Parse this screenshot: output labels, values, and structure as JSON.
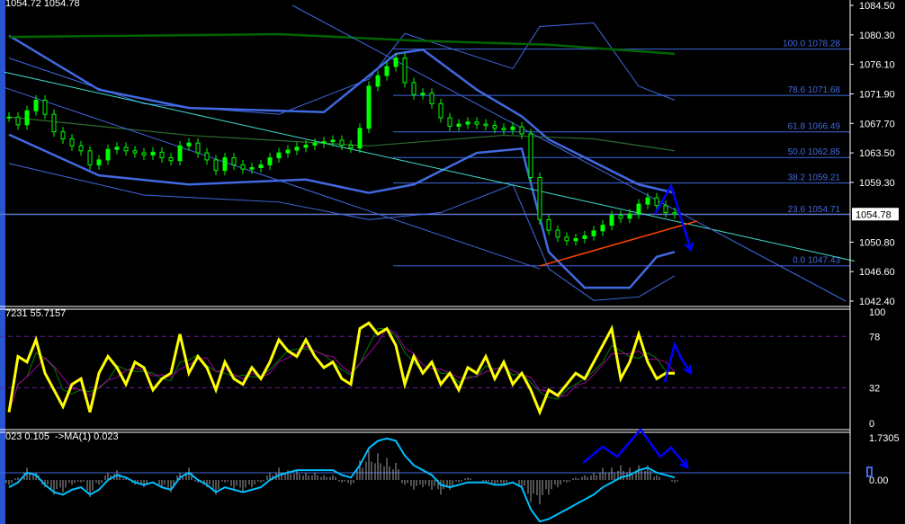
{
  "header": {
    "main_values": "1054.72 1054.78",
    "stoch_values": "7231 55.7157",
    "macd_values": "023 0.105  ->MA(1) 0.023"
  },
  "colors": {
    "bull_candle": "#00ff00",
    "band": "#4169e1",
    "long_ma": "#006400",
    "stoch_main": "#ffff00",
    "stoch_signal_1": "#008000",
    "stoch_signal_2": "#a000a0",
    "macd_line": "#00bfff",
    "histogram": "#a0a0a0",
    "fib": "#4169e1",
    "arrows": "#0000ff",
    "support_line": "#ff4500",
    "trend_line": "#40e0d0"
  },
  "chart_data": [
    {
      "type": "candlestick",
      "ylim": [
        1042.4,
        1084.5
      ],
      "y_ticks": [
        "1084.50",
        "1080.30",
        "1076.10",
        "1071.90",
        "1067.70",
        "1063.50",
        "1059.30",
        "1054.78",
        "1050.80",
        "1046.60",
        "1042.40"
      ],
      "current_price": "1054.78",
      "closes": [
        1068.6,
        1067.5,
        1069.5,
        1071,
        1069,
        1066.5,
        1065.5,
        1064.5,
        1063.8,
        1061.8,
        1062.5,
        1064,
        1064.3,
        1063.8,
        1063.5,
        1063.2,
        1063.6,
        1062.8,
        1062.4,
        1064.5,
        1064.9,
        1063.5,
        1062.5,
        1061,
        1062.8,
        1061.8,
        1061.2,
        1061.4,
        1061.8,
        1062.8,
        1063.5,
        1063.9,
        1064.3,
        1064.6,
        1064.9,
        1065.1,
        1065.3,
        1064.6,
        1064.2,
        1067,
        1073,
        1074.5,
        1075.8,
        1077,
        1073.5,
        1071.8,
        1072,
        1070.5,
        1068.5,
        1067.3,
        1067.6,
        1067.9,
        1067.6,
        1067.4,
        1067,
        1066.8,
        1067.2,
        1066.2,
        1060,
        1054,
        1052.5,
        1051.5,
        1051,
        1051.3,
        1051.7,
        1052.4,
        1053.2,
        1054.6,
        1054.2,
        1054.8,
        1056.2,
        1057.1,
        1056,
        1055,
        1054.8
      ],
      "fibonacci": [
        {
          "level": "100.0",
          "price": "1078.28"
        },
        {
          "level": "78.6",
          "price": "1071.68"
        },
        {
          "level": "61.8",
          "price": "1066.49"
        },
        {
          "level": "50.0",
          "price": "1062.85"
        },
        {
          "level": "38.2",
          "price": "1059.21"
        },
        {
          "level": "23.6",
          "price": "1054.71"
        },
        {
          "level": "0.0",
          "price": "1047.43"
        }
      ],
      "bands": [
        {
          "style": "upper",
          "points": [
            [
              0,
              1080.2
            ],
            [
              10,
              1072.5
            ],
            [
              20,
              1069.9
            ],
            [
              35,
              1069.3
            ],
            [
              43,
              1077.6
            ],
            [
              46,
              1078.2
            ],
            [
              52,
              1072.5
            ],
            [
              57,
              1068.7
            ],
            [
              60,
              1065.4
            ],
            [
              65,
              1062.2
            ],
            [
              70,
              1059.0
            ],
            [
              74,
              1057.8
            ]
          ]
        },
        {
          "style": "lower",
          "points": [
            [
              0,
              1066.1
            ],
            [
              10,
              1060.3
            ],
            [
              20,
              1059.0
            ],
            [
              33,
              1059.7
            ],
            [
              40,
              1057.8
            ],
            [
              45,
              1059.0
            ],
            [
              52,
              1063.5
            ],
            [
              57,
              1064.1
            ],
            [
              60,
              1049.4
            ],
            [
              64,
              1044.3
            ],
            [
              69,
              1044.3
            ],
            [
              72,
              1048.7
            ],
            [
              74,
              1049.4
            ]
          ]
        },
        {
          "style": "outer",
          "points": [
            [
              0,
              1077
            ],
            [
              15,
              1070.5
            ],
            [
              30,
              1069
            ],
            [
              40,
              1074
            ],
            [
              44,
              1080.5
            ],
            [
              56,
              1075.5
            ],
            [
              59,
              1081.5
            ],
            [
              65,
              1082
            ],
            [
              70,
              1073
            ],
            [
              74,
              1071
            ]
          ]
        },
        {
          "style": "outer",
          "points": [
            [
              0,
              1062
            ],
            [
              15,
              1057.5
            ],
            [
              30,
              1056.5
            ],
            [
              40,
              1054
            ],
            [
              48,
              1055
            ],
            [
              56,
              1059
            ],
            [
              60,
              1047
            ],
            [
              65,
              1042.5
            ],
            [
              70,
              1043
            ],
            [
              74,
              1046
            ]
          ]
        },
        {
          "style": "long_ma",
          "points": [
            [
              0,
              1080.0
            ],
            [
              30,
              1080.4
            ],
            [
              45,
              1079.5
            ],
            [
              60,
              1078.9
            ],
            [
              74,
              1077.6
            ]
          ]
        },
        {
          "style": "mid_ma",
          "points": [
            [
              0,
              1068.6
            ],
            [
              20,
              1066
            ],
            [
              40,
              1064.5
            ],
            [
              55,
              1066
            ],
            [
              65,
              1065.5
            ],
            [
              74,
              1063.8
            ]
          ]
        }
      ],
      "trendlines": [
        {
          "style": "trend",
          "from": [
            -0.5,
            1075.0
          ],
          "to": [
            94,
            1048.1
          ]
        },
        {
          "style": "channel",
          "from": [
            31.5,
            1084.5
          ],
          "to": [
            93,
            1042.4
          ]
        },
        {
          "style": "channel",
          "from": [
            -0.5,
            1072.8
          ],
          "to": [
            59,
            1047.0
          ]
        },
        {
          "style": "support",
          "from": [
            59,
            1047.4
          ],
          "to": [
            76.5,
            1053.8
          ]
        }
      ]
    },
    {
      "type": "line",
      "ylim": [
        0,
        100
      ],
      "y_ticks": [
        "100",
        "78",
        "32",
        "0"
      ],
      "levels": [
        78,
        32
      ],
      "values": [
        10,
        60,
        55,
        75,
        45,
        30,
        15,
        35,
        40,
        10,
        45,
        60,
        50,
        35,
        55,
        50,
        30,
        40,
        45,
        80,
        45,
        60,
        50,
        30,
        55,
        40,
        35,
        50,
        40,
        55,
        75,
        65,
        60,
        75,
        60,
        50,
        55,
        40,
        35,
        85,
        90,
        80,
        85,
        70,
        35,
        60,
        45,
        55,
        35,
        45,
        30,
        50,
        45,
        60,
        40,
        55,
        35,
        45,
        30,
        10,
        30,
        25,
        35,
        45,
        40,
        55,
        70,
        85,
        40,
        55,
        80,
        55,
        40,
        45,
        45
      ]
    },
    {
      "type": "bar",
      "y_ticks": [
        "1.7305",
        "0.00"
      ],
      "ylim": [
        -1.8,
        1.85
      ],
      "macd": [
        -0.3,
        -0.1,
        0.3,
        0.2,
        -0.2,
        -0.5,
        -0.6,
        -0.4,
        -0.3,
        -0.6,
        -0.4,
        0.0,
        0.2,
        0.1,
        -0.1,
        -0.2,
        -0.1,
        -0.3,
        -0.4,
        0.1,
        0.3,
        0.0,
        -0.2,
        -0.5,
        -0.3,
        -0.4,
        -0.5,
        -0.4,
        -0.3,
        0.0,
        0.2,
        0.3,
        0.4,
        0.4,
        0.4,
        0.4,
        0.4,
        0.2,
        0.1,
        0.6,
        1.3,
        1.6,
        1.7,
        1.6,
        1.0,
        0.6,
        0.4,
        0.2,
        -0.2,
        -0.3,
        -0.2,
        -0.1,
        -0.1,
        -0.1,
        -0.2,
        -0.2,
        -0.1,
        -0.3,
        -1.2,
        -1.7,
        -1.6,
        -1.4,
        -1.2,
        -1.0,
        -0.8,
        -0.6,
        -0.3,
        -0.1,
        0.1,
        0.2,
        0.4,
        0.5,
        0.3,
        0.2,
        0.1
      ],
      "histogram": [
        -0.2,
        0.1,
        0.5,
        0.3,
        -0.3,
        -0.6,
        -0.5,
        -0.2,
        -0.1,
        -0.7,
        -0.2,
        0.3,
        0.4,
        0.1,
        -0.2,
        -0.3,
        0.0,
        -0.3,
        -0.5,
        0.3,
        0.5,
        -0.1,
        -0.3,
        -0.6,
        -0.1,
        -0.4,
        -0.5,
        -0.3,
        -0.1,
        0.3,
        0.5,
        0.4,
        0.4,
        0.3,
        0.3,
        0.2,
        0.2,
        -0.1,
        -0.2,
        0.8,
        1.2,
        1.1,
        0.9,
        0.7,
        -0.2,
        -0.4,
        -0.3,
        -0.4,
        -0.6,
        -0.4,
        -0.1,
        0.1,
        0.0,
        -0.1,
        -0.2,
        -0.2,
        0.0,
        -0.4,
        -0.9,
        -1.0,
        -0.6,
        -0.3,
        -0.1,
        0.1,
        0.2,
        0.3,
        0.5,
        0.5,
        0.6,
        0.5,
        0.6,
        0.6,
        0.2,
        0.0,
        -0.1
      ]
    }
  ]
}
